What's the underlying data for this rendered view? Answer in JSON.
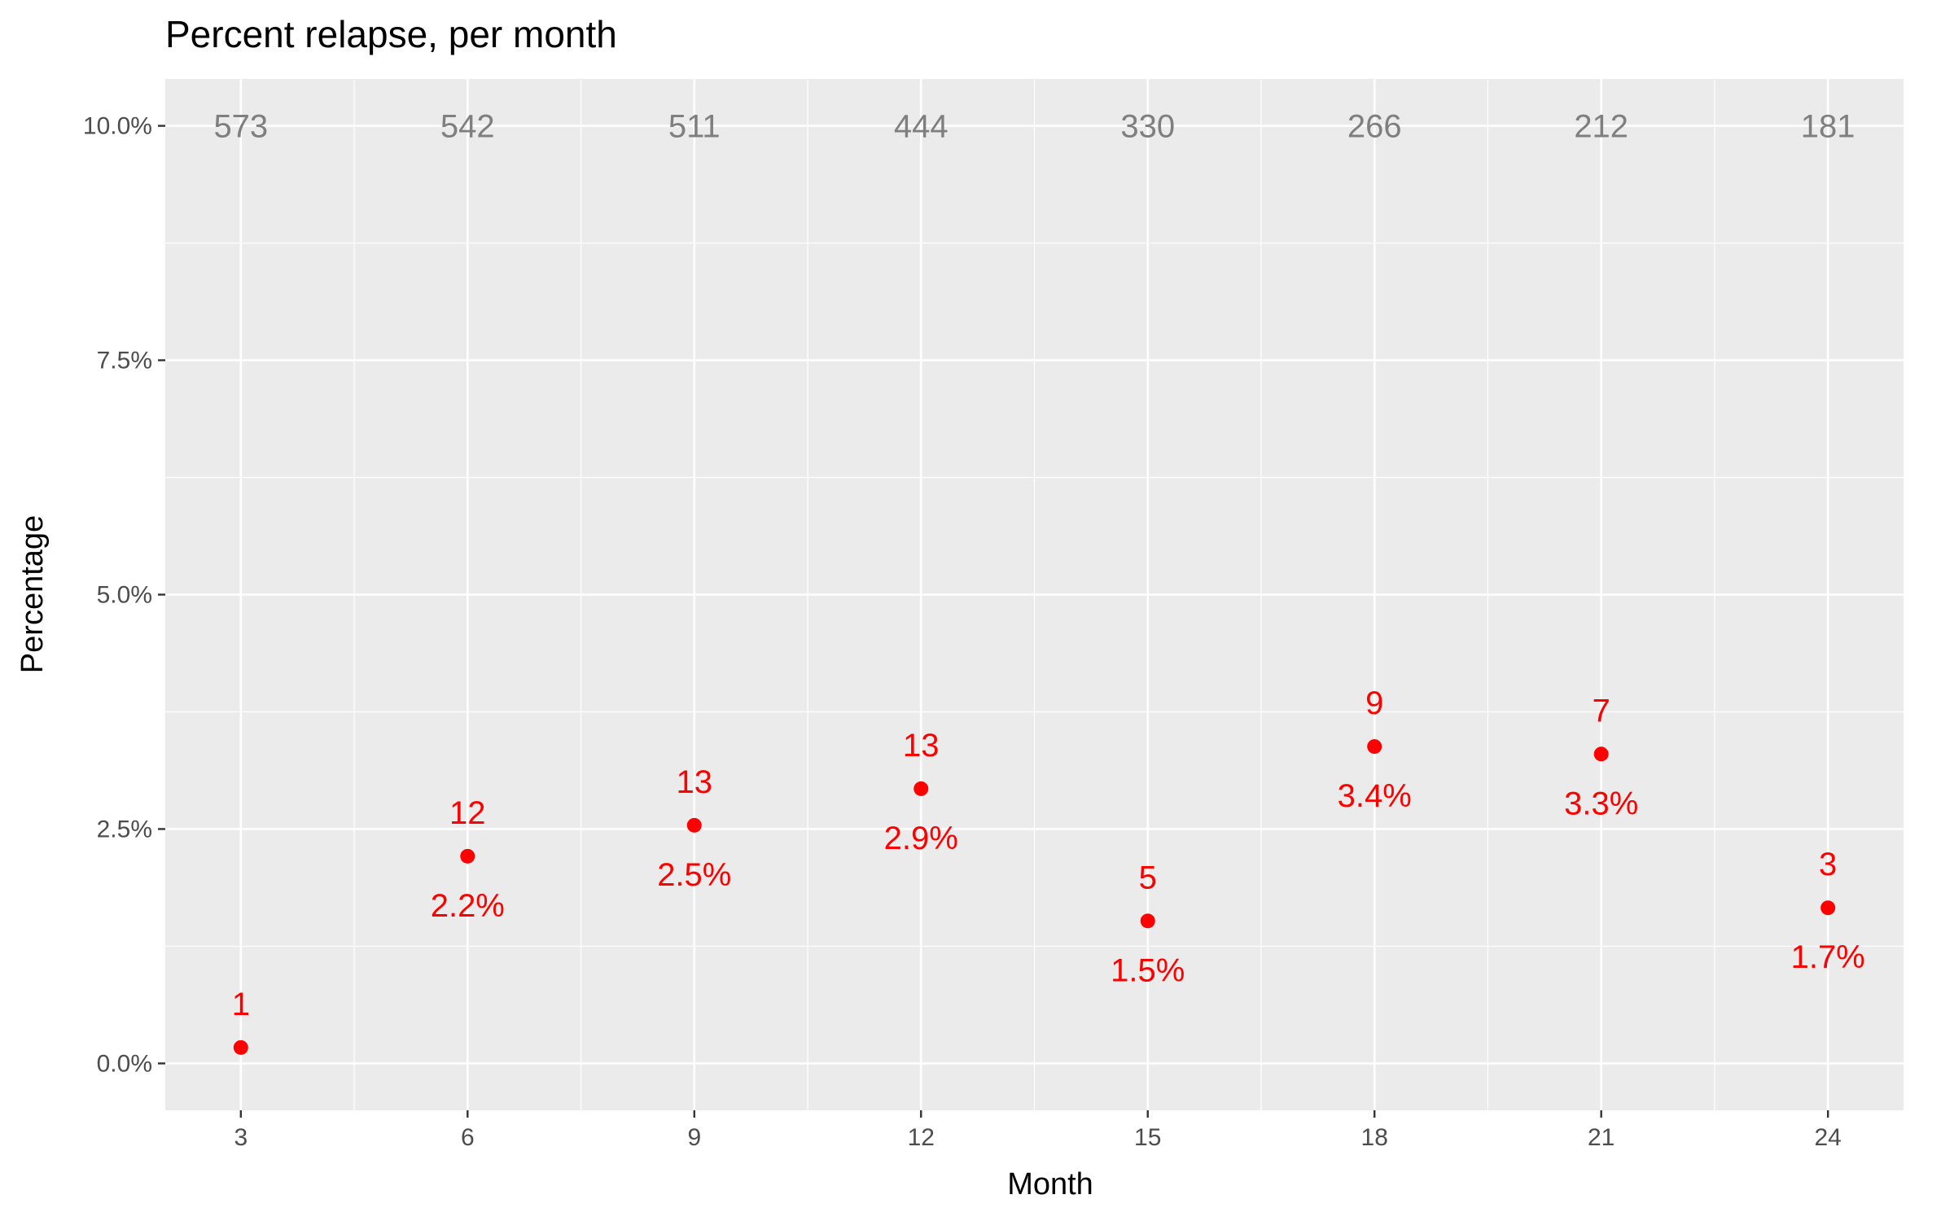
{
  "chart_data": {
    "type": "scatter",
    "title": "Percent relapse, per month",
    "xlabel": "Month",
    "ylabel": "Percentage",
    "x_ticks": [
      "3",
      "6",
      "9",
      "12",
      "15",
      "18",
      "21",
      "24"
    ],
    "y_ticks": [
      "0.0%",
      "2.5%",
      "5.0%",
      "7.5%",
      "10.0%"
    ],
    "x_range": [
      2,
      25
    ],
    "y_range": [
      -0.5,
      10.5
    ],
    "grid": true,
    "point_color": "#ff0000",
    "panel_color": "#ebebeb",
    "count_label_color": "#7f7f7f",
    "x": [
      3,
      6,
      9,
      12,
      15,
      18,
      21,
      24
    ],
    "y": [
      0.17,
      2.21,
      2.54,
      2.93,
      1.52,
      3.38,
      3.3,
      1.66
    ],
    "relapse_counts": [
      "1",
      "12",
      "13",
      "13",
      "5",
      "9",
      "7",
      "3"
    ],
    "percent_labels": [
      "",
      "2.2%",
      "2.5%",
      "2.9%",
      "1.5%",
      "3.4%",
      "3.3%",
      "1.7%"
    ],
    "at_risk_counts": [
      "573",
      "542",
      "511",
      "444",
      "330",
      "266",
      "212",
      "181"
    ]
  }
}
